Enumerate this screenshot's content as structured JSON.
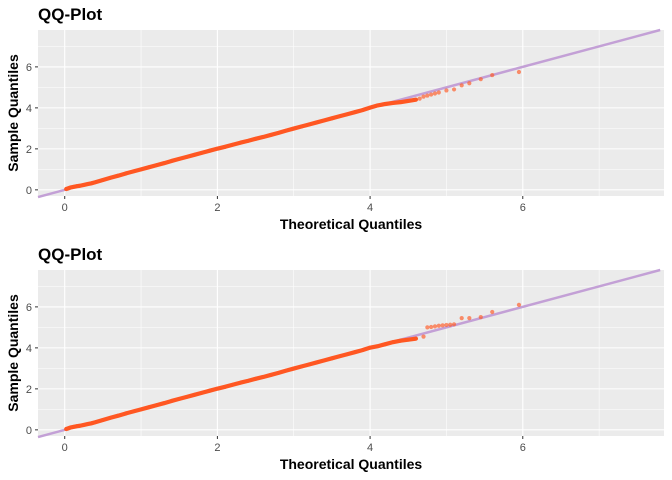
{
  "chart_data": [
    {
      "type": "scatter",
      "title": "QQ-Plot",
      "xlabel": "Theoretical Quantiles",
      "ylabel": "Sample Quantiles",
      "xlim": [
        -0.35,
        7.85
      ],
      "ylim": [
        -0.3,
        7.8
      ],
      "x_ticks": [
        0,
        2,
        4,
        6
      ],
      "y_ticks": [
        0,
        2,
        4,
        6
      ],
      "x_tick_labels": [
        "0",
        "2",
        "4",
        "6"
      ],
      "y_tick_labels": [
        "0",
        "2",
        "4",
        "6"
      ],
      "grid": true,
      "reference_line": {
        "intercept": 0,
        "slope": 1,
        "color": "#C3A0D6"
      },
      "point_color": "#FF5722",
      "series": [
        {
          "x": [
            0.02,
            0.05,
            0.08,
            0.12,
            0.16,
            0.2,
            0.25,
            0.3,
            0.35,
            0.4,
            0.5,
            0.6,
            0.7,
            0.8,
            0.9,
            1.0,
            1.1,
            1.2,
            1.3,
            1.4,
            1.5,
            1.6,
            1.7,
            1.8,
            1.9,
            2.0,
            2.1,
            2.2,
            2.3,
            2.4,
            2.5,
            2.6,
            2.7,
            2.8,
            2.9,
            3.0,
            3.1,
            3.2,
            3.3,
            3.4,
            3.5,
            3.6,
            3.7,
            3.8,
            3.9,
            4.0,
            4.1,
            4.2,
            4.3,
            4.4,
            4.5,
            4.6,
            4.65,
            4.7,
            4.75,
            4.8,
            4.85,
            4.9,
            5.0,
            5.1,
            5.2,
            5.3,
            5.45,
            5.6,
            5.95
          ],
          "y": [
            0.04,
            0.08,
            0.12,
            0.15,
            0.18,
            0.2,
            0.24,
            0.28,
            0.32,
            0.37,
            0.48,
            0.59,
            0.69,
            0.8,
            0.9,
            1.0,
            1.1,
            1.2,
            1.3,
            1.41,
            1.51,
            1.61,
            1.71,
            1.81,
            1.91,
            2.01,
            2.1,
            2.2,
            2.3,
            2.39,
            2.49,
            2.58,
            2.68,
            2.78,
            2.89,
            2.99,
            3.09,
            3.19,
            3.29,
            3.39,
            3.49,
            3.59,
            3.69,
            3.79,
            3.89,
            4.01,
            4.12,
            4.19,
            4.24,
            4.28,
            4.34,
            4.4,
            4.45,
            4.55,
            4.6,
            4.65,
            4.7,
            4.75,
            4.85,
            4.9,
            5.1,
            5.2,
            5.4,
            5.6,
            5.75
          ]
        }
      ]
    },
    {
      "type": "scatter",
      "title": "QQ-Plot",
      "xlabel": "Theoretical Quantiles",
      "ylabel": "Sample Quantiles",
      "xlim": [
        -0.35,
        7.85
      ],
      "ylim": [
        -0.3,
        7.8
      ],
      "x_ticks": [
        0,
        2,
        4,
        6
      ],
      "y_ticks": [
        0,
        2,
        4,
        6
      ],
      "x_tick_labels": [
        "0",
        "2",
        "4",
        "6"
      ],
      "y_tick_labels": [
        "0",
        "2",
        "4",
        "6"
      ],
      "grid": true,
      "reference_line": {
        "intercept": 0,
        "slope": 1,
        "color": "#C3A0D6"
      },
      "point_color": "#FF5722",
      "series": [
        {
          "x": [
            0.02,
            0.05,
            0.08,
            0.12,
            0.16,
            0.2,
            0.25,
            0.3,
            0.35,
            0.4,
            0.5,
            0.6,
            0.7,
            0.8,
            0.9,
            1.0,
            1.1,
            1.2,
            1.3,
            1.4,
            1.5,
            1.6,
            1.7,
            1.8,
            1.9,
            2.0,
            2.1,
            2.2,
            2.3,
            2.4,
            2.5,
            2.6,
            2.7,
            2.8,
            2.9,
            3.0,
            3.1,
            3.2,
            3.3,
            3.4,
            3.5,
            3.6,
            3.7,
            3.8,
            3.9,
            4.0,
            4.1,
            4.2,
            4.3,
            4.4,
            4.5,
            4.6,
            4.7,
            4.75,
            4.8,
            4.85,
            4.9,
            4.95,
            5.0,
            5.05,
            5.1,
            5.2,
            5.3,
            5.45,
            5.6,
            5.95
          ],
          "y": [
            0.04,
            0.08,
            0.12,
            0.15,
            0.18,
            0.2,
            0.24,
            0.28,
            0.32,
            0.37,
            0.48,
            0.59,
            0.69,
            0.8,
            0.9,
            1.0,
            1.1,
            1.2,
            1.3,
            1.41,
            1.51,
            1.61,
            1.71,
            1.81,
            1.91,
            2.01,
            2.1,
            2.2,
            2.3,
            2.39,
            2.49,
            2.58,
            2.68,
            2.78,
            2.89,
            2.99,
            3.09,
            3.19,
            3.29,
            3.39,
            3.49,
            3.59,
            3.69,
            3.79,
            3.89,
            4.01,
            4.08,
            4.18,
            4.28,
            4.35,
            4.4,
            4.45,
            4.55,
            5.0,
            5.02,
            5.05,
            5.08,
            5.1,
            5.12,
            5.13,
            5.15,
            5.45,
            5.45,
            5.5,
            5.75,
            6.1
          ]
        }
      ]
    }
  ]
}
